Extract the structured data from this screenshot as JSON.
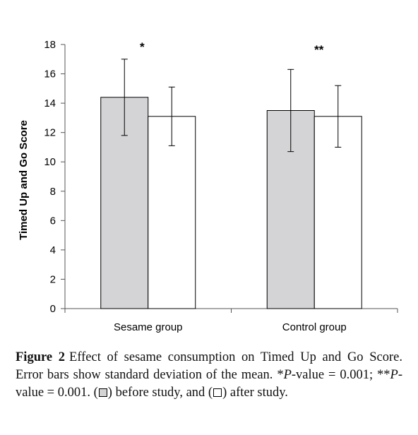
{
  "chart_data": {
    "type": "bar",
    "title": "",
    "xlabel": "",
    "ylabel": "Timed Up and Go Score",
    "ylim": [
      0,
      18
    ],
    "yticks": [
      0,
      2,
      4,
      6,
      8,
      10,
      12,
      14,
      16,
      18
    ],
    "categories": [
      "Sesame group",
      "Control group"
    ],
    "series": [
      {
        "fill": "#d4d4d6",
        "values": [
          14.4,
          13.5
        ],
        "error": [
          2.6,
          2.8
        ]
      },
      {
        "fill": "#ffffff",
        "values": [
          13.1,
          13.1
        ],
        "error": [
          2.0,
          2.1
        ]
      }
    ],
    "annotations": [
      "*",
      "**"
    ],
    "grid": false,
    "legend": "none"
  },
  "caption": {
    "figure_label": "Figure 2",
    "text_1": "Effect of sesame consumption on Timed Up and Go Score. Error bars show standard deviation of the mean. *",
    "p_1": "P",
    "text_2": "-value = 0.001; **",
    "p_2": "P",
    "text_3": "-value = 0.001. (",
    "text_4": ") before study, and (",
    "text_5": ") after study."
  }
}
